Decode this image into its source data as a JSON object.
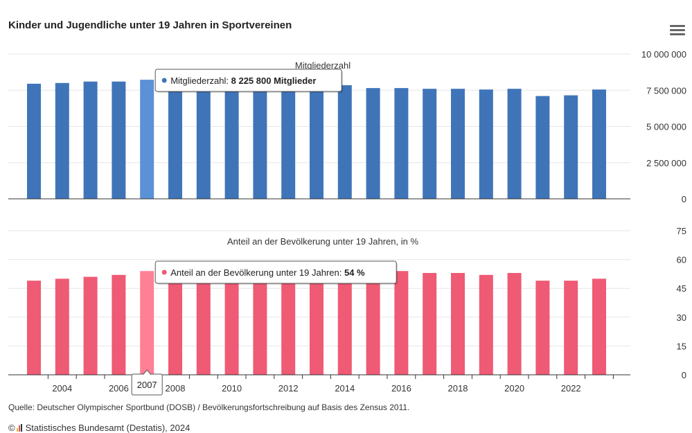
{
  "title": "Kinder und Jugendliche unter 19 Jahren in Sportvereinen",
  "menu_icon": "hamburger-menu-icon",
  "source": "Quelle: Deutscher Olympischer Sportbund (DOSB) / Bevölkerungsfortschreibung auf Basis des Zensus 2011.",
  "copyright_symbol": "©",
  "credit": "Statistisches Bundesamt (Destatis), 2024",
  "colors": {
    "members": "#3f75b8",
    "members_highlight": "#5b91d6",
    "share": "#ef5a74",
    "share_highlight": "#ff7f95"
  },
  "chart_data": [
    {
      "type": "bar",
      "title": "Mitgliederzahl",
      "x": [
        2003,
        2004,
        2005,
        2006,
        2007,
        2008,
        2009,
        2010,
        2011,
        2012,
        2013,
        2014,
        2015,
        2016,
        2017,
        2018,
        2019,
        2020,
        2021,
        2022,
        2023
      ],
      "values": [
        7950000,
        8000000,
        8100000,
        8100000,
        8225800,
        8100000,
        8050000,
        8050000,
        8000000,
        8000000,
        7950000,
        7850000,
        7650000,
        7650000,
        7600000,
        7600000,
        7550000,
        7600000,
        7100000,
        7150000,
        7550000
      ],
      "ylim": [
        0,
        10000000
      ],
      "yticks": [
        "0",
        "2 500 000",
        "5 000 000",
        "7 500 000",
        "10 000 000"
      ],
      "highlight_x": 2007,
      "tooltip": {
        "label": "Mitgliederzahl: ",
        "value": "8 225 800 Mitglieder"
      }
    },
    {
      "type": "bar",
      "title": "Anteil an der Bevölkerung unter 19 Jahren, in %",
      "x": [
        2003,
        2004,
        2005,
        2006,
        2007,
        2008,
        2009,
        2010,
        2011,
        2012,
        2013,
        2014,
        2015,
        2016,
        2017,
        2018,
        2019,
        2020,
        2021,
        2022,
        2023
      ],
      "values": [
        49,
        50,
        51,
        52,
        54,
        54,
        54,
        54,
        54,
        54,
        54,
        54,
        53,
        54,
        53,
        53,
        52,
        53,
        49,
        49,
        50
      ],
      "ylim": [
        0,
        75
      ],
      "yticks": [
        "0",
        "15",
        "30",
        "45",
        "60",
        "75"
      ],
      "highlight_x": 2007,
      "tooltip": {
        "label": "Anteil an der Bevölkerung unter 19 Jahren: ",
        "value": "54 %"
      }
    }
  ],
  "xticks": [
    "2004",
    "2006",
    "2008",
    "2010",
    "2012",
    "2014",
    "2016",
    "2018",
    "2020",
    "2022"
  ],
  "x_highlight_label": "2007"
}
